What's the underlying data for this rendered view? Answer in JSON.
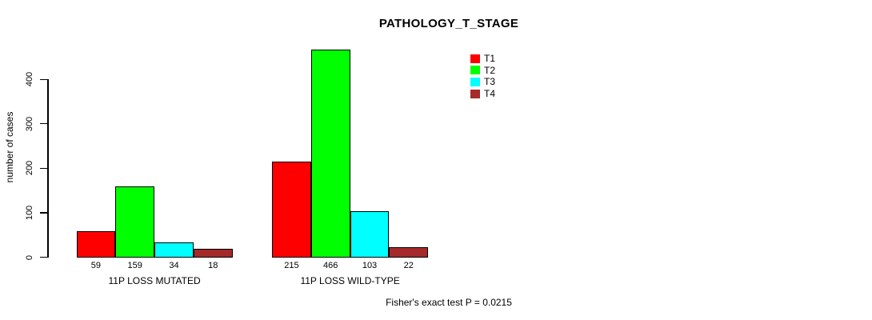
{
  "chart_data": {
    "type": "bar",
    "title": "PATHOLOGY_T_STAGE",
    "ylabel": "number of cases",
    "yticks": [
      0,
      100,
      200,
      300,
      400
    ],
    "ylim": [
      0,
      466
    ],
    "grid": false,
    "legend_position": "top-right",
    "show_values_under_bars": true,
    "categories": [
      "11P LOSS MUTATED",
      "11P LOSS WILD-TYPE"
    ],
    "series": [
      {
        "name": "T1",
        "color": "#FF0000",
        "values": [
          59,
          215
        ]
      },
      {
        "name": "T2",
        "color": "#00FF00",
        "values": [
          159,
          466
        ]
      },
      {
        "name": "T3",
        "color": "#00FFFF",
        "values": [
          34,
          103
        ]
      },
      {
        "name": "T4",
        "color": "#A52A2A",
        "values": [
          18,
          22
        ]
      }
    ],
    "annotation": "Fisher's exact test P = 0.0215"
  }
}
